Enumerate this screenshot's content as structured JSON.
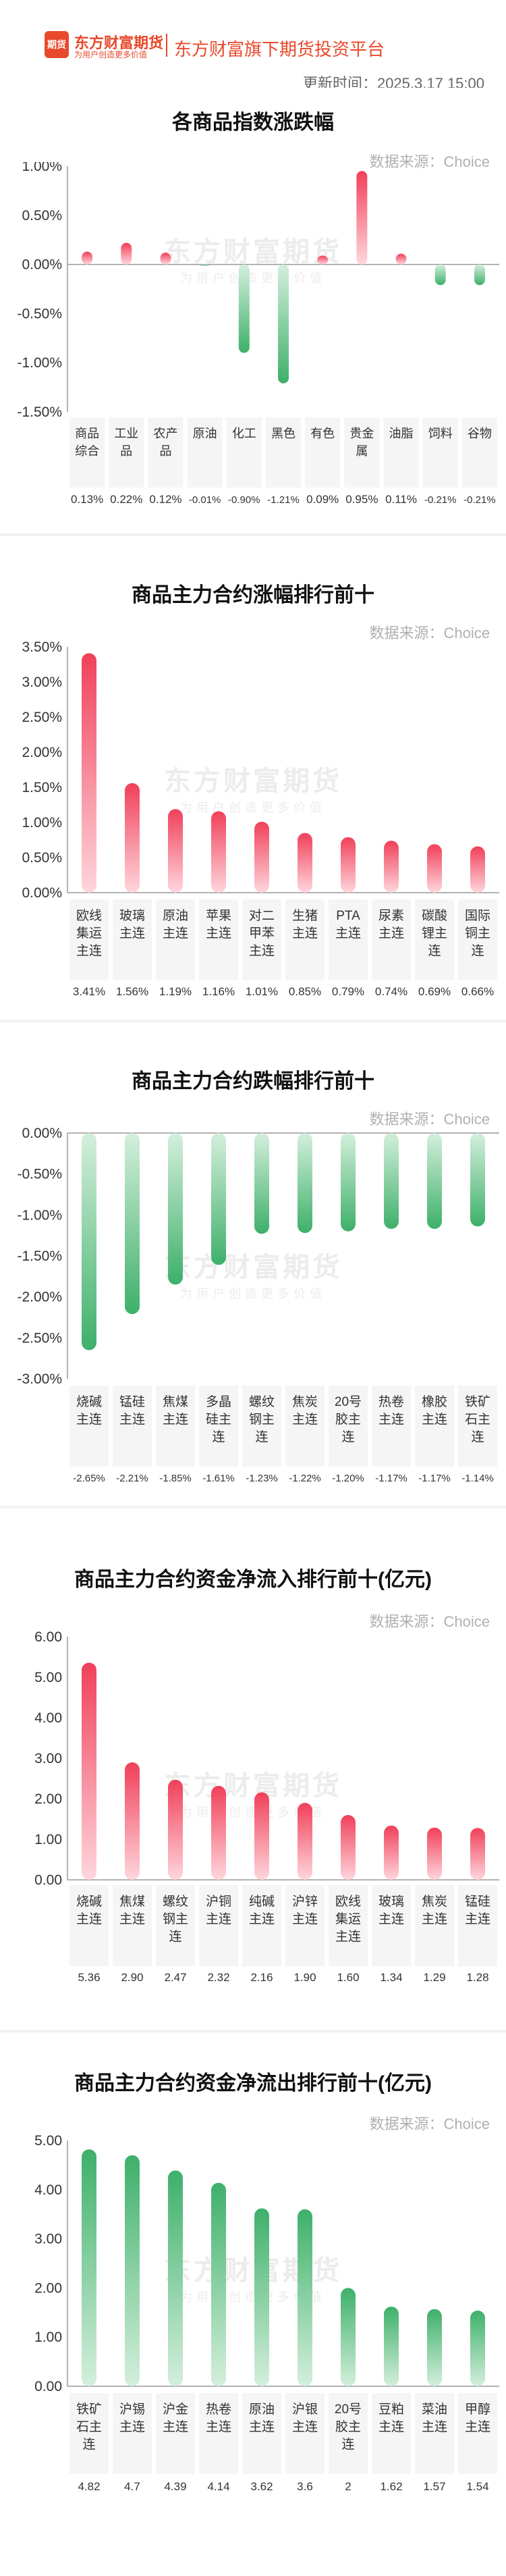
{
  "header": {
    "logo_text": "东方财富期货",
    "logo_badge": "期货",
    "slogan": "为用户创造更多价值",
    "subtitle": "东方财富旗下期货投资平台",
    "update_time": "更新时间：2025.3.17 15:00"
  },
  "watermark": {
    "main": "东方财富期货",
    "sub": "为用户创造更多价值"
  },
  "sections": [
    {
      "title": "各商品指数涨跌幅",
      "source": "数据来源：Choice"
    },
    {
      "title": "商品主力合约涨幅排行前十",
      "source": "数据来源：Choice"
    },
    {
      "title": "商品主力合约跌幅排行前十",
      "source": "数据来源：Choice"
    },
    {
      "title": "商品主力合约资金净流入排行前十(亿元)",
      "source": "数据来源：Choice"
    },
    {
      "title": "商品主力合约资金净流出排行前十(亿元)",
      "source": "数据来源：Choice"
    }
  ],
  "colors": {
    "rise": "#f0405a",
    "rise_light": "#ffd6dc",
    "fall": "#3eb06a",
    "fall_light": "#d4efdc",
    "brand": "#e8492b"
  },
  "chart_data": [
    {
      "type": "bar",
      "title": "各商品指数涨跌幅",
      "categories": [
        "商品综合",
        "工业品",
        "农产品",
        "原油",
        "化工",
        "黑色",
        "有色",
        "贵金属",
        "油脂",
        "饲料",
        "谷物"
      ],
      "values": [
        0.13,
        0.22,
        0.12,
        -0.01,
        -0.9,
        -1.21,
        0.09,
        0.95,
        0.11,
        -0.21,
        -0.21
      ],
      "value_labels": [
        "0.13%",
        "0.22%",
        "0.12%",
        "-0.01%",
        "-0.90%",
        "-1.21%",
        "0.09%",
        "0.95%",
        "0.11%",
        "-0.21%",
        "-0.21%"
      ],
      "yticks": [
        "1.00%",
        "0.50%",
        "0.00%",
        "-0.50%",
        "-1.00%",
        "-1.50%"
      ],
      "ylim": [
        -1.5,
        1.0
      ],
      "grid": false
    },
    {
      "type": "bar",
      "title": "商品主力合约涨幅排行前十",
      "categories": [
        "欧线集运主连",
        "玻璃主连",
        "原油主连",
        "苹果主连",
        "对二甲苯主连",
        "生猪主连",
        "PTA主连",
        "尿素主连",
        "碳酸锂主连",
        "国际铜主连"
      ],
      "values": [
        3.41,
        1.56,
        1.19,
        1.16,
        1.01,
        0.85,
        0.79,
        0.74,
        0.69,
        0.66
      ],
      "value_labels": [
        "3.41%",
        "1.56%",
        "1.19%",
        "1.16%",
        "1.01%",
        "0.85%",
        "0.79%",
        "0.74%",
        "0.69%",
        "0.66%"
      ],
      "yticks": [
        "3.50%",
        "3.00%",
        "2.50%",
        "2.00%",
        "1.50%",
        "1.00%",
        "0.50%",
        "0.00%"
      ],
      "ylim": [
        0,
        3.5
      ],
      "grid": false
    },
    {
      "type": "bar",
      "title": "商品主力合约跌幅排行前十",
      "categories": [
        "烧碱主连",
        "锰硅主连",
        "焦煤主连",
        "多晶硅主连",
        "螺纹钢主连",
        "焦炭主连",
        "20号胶主连",
        "热卷主连",
        "橡胶主连",
        "铁矿石主连"
      ],
      "values": [
        -2.65,
        -2.21,
        -1.85,
        -1.61,
        -1.23,
        -1.22,
        -1.2,
        -1.17,
        -1.17,
        -1.14
      ],
      "value_labels": [
        "-2.65%",
        "-2.21%",
        "-1.85%",
        "-1.61%",
        "-1.23%",
        "-1.22%",
        "-1.20%",
        "-1.17%",
        "-1.17%",
        "-1.14%"
      ],
      "yticks": [
        "0.00%",
        "-0.50%",
        "-1.00%",
        "-1.50%",
        "-2.00%",
        "-2.50%",
        "-3.00%"
      ],
      "ylim": [
        -3.0,
        0
      ],
      "grid": false
    },
    {
      "type": "bar",
      "title": "商品主力合约资金净流入排行前十(亿元)",
      "categories": [
        "烧碱主连",
        "焦煤主连",
        "螺纹钢主连",
        "沪铜主连",
        "纯碱主连",
        "沪锌主连",
        "欧线集运主连",
        "玻璃主连",
        "焦炭主连",
        "锰硅主连"
      ],
      "values": [
        5.36,
        2.9,
        2.47,
        2.32,
        2.16,
        1.9,
        1.6,
        1.34,
        1.29,
        1.28
      ],
      "value_labels": [
        "5.36",
        "2.90",
        "2.47",
        "2.32",
        "2.16",
        "1.90",
        "1.60",
        "1.34",
        "1.29",
        "1.28"
      ],
      "yticks": [
        "6.00",
        "5.00",
        "4.00",
        "3.00",
        "2.00",
        "1.00",
        "0.00"
      ],
      "ylim": [
        0,
        6.0
      ],
      "grid": false
    },
    {
      "type": "bar",
      "title": "商品主力合约资金净流出排行前十(亿元)",
      "categories": [
        "铁矿石主连",
        "沪锡主连",
        "沪金主连",
        "热卷主连",
        "原油主连",
        "沪银主连",
        "20号胶主连",
        "豆粕主连",
        "菜油主连",
        "甲醇主连"
      ],
      "values": [
        4.82,
        4.7,
        4.39,
        4.14,
        3.62,
        3.6,
        2,
        1.62,
        1.57,
        1.54
      ],
      "value_labels": [
        "4.82",
        "4.7",
        "4.39",
        "4.14",
        "3.62",
        "3.6",
        "2",
        "1.62",
        "1.57",
        "1.54"
      ],
      "yticks": [
        "5.00",
        "4.00",
        "3.00",
        "2.00",
        "1.00",
        "0.00"
      ],
      "ylim": [
        0,
        5.0
      ],
      "grid": false
    }
  ]
}
